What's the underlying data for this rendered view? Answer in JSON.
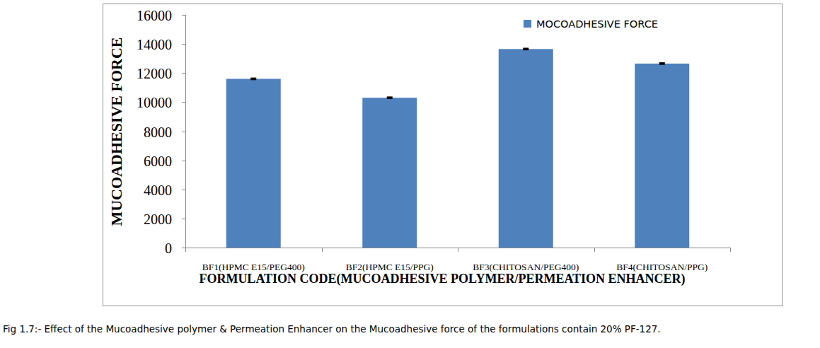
{
  "chart_data": {
    "type": "bar",
    "title": "Fig 1.7:- Effect of the Mucoadhesive polymer & Permeation Enhancer on the Mucoadhesive force of the formulations contain 20% PF-127.",
    "x_label": "FORMULATION CODE(MUCOADHESIVE POLYMER/PERMEATION ENHANCER)",
    "y_label": "MUCOADHESIVE FORCE",
    "categories": [
      "BF1(HPMC E15/PEG400)",
      "BF2(HPMC E15/PPG)",
      "BF3(CHITOSAN/PEG400)",
      "BF4(CHITOSAN/PPG)"
    ],
    "series": [
      {
        "name": "MOCOADHESIVE FORCE",
        "color": "#4f81bd",
        "values": [
          11600,
          10300,
          13650,
          12650
        ],
        "errors": [
          40,
          40,
          40,
          40
        ]
      }
    ],
    "ylim": [
      0,
      16000
    ],
    "yticks": [
      0,
      2000,
      4000,
      6000,
      8000,
      10000,
      12000,
      14000,
      16000
    ],
    "grid": false,
    "legend": "top-right"
  }
}
